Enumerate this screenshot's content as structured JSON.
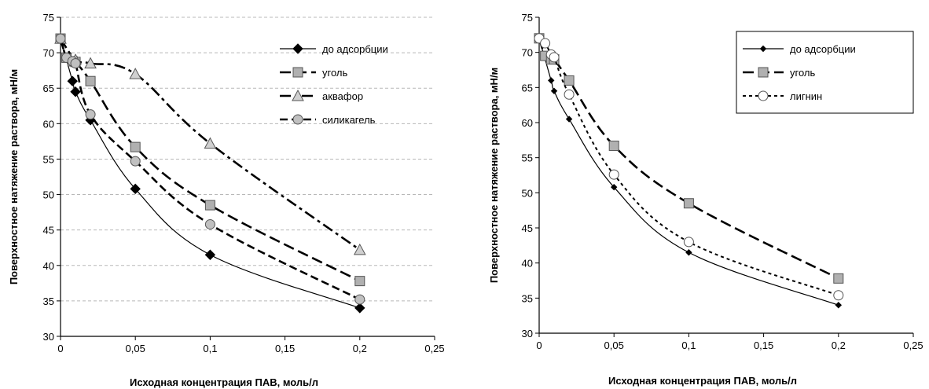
{
  "chart_data": [
    {
      "type": "line",
      "title": "",
      "xlabel": "Исходная концентрация ПАВ, моль/л",
      "ylabel": "Поверхностное натяжение раствора, мН/м",
      "xlim": [
        0,
        0.25
      ],
      "ylim": [
        30,
        75
      ],
      "x_ticks": [
        "0",
        "0,05",
        "0,1",
        "0,15",
        "0,2",
        "0,25"
      ],
      "y_ticks": [
        "30",
        "35",
        "40",
        "45",
        "50",
        "55",
        "60",
        "65",
        "70",
        "75"
      ],
      "grid": "horizontal dashed",
      "legend_position": "top-right",
      "series": [
        {
          "name": "до адсорбции",
          "marker": "diamond",
          "line": "solid-thin",
          "x": [
            0,
            0.008,
            0.01,
            0.02,
            0.05,
            0.1,
            0.2
          ],
          "y": [
            72,
            66,
            64.5,
            60.5,
            50.8,
            41.5,
            34
          ]
        },
        {
          "name": "уголь",
          "marker": "square",
          "line": "long-dash",
          "x": [
            0,
            0.004,
            0.008,
            0.01,
            0.02,
            0.05,
            0.1,
            0.2
          ],
          "y": [
            72,
            69.3,
            68.8,
            68.7,
            66,
            56.7,
            48.5,
            37.8
          ]
        },
        {
          "name": "аквафор",
          "marker": "triangle",
          "line": "dash-dot",
          "x": [
            0,
            0.01,
            0.02,
            0.05,
            0.1,
            0.2
          ],
          "y": [
            72,
            69,
            68.5,
            67,
            57.2,
            42.2
          ]
        },
        {
          "name": "силикагель",
          "marker": "circle-gray",
          "line": "dash",
          "x": [
            0,
            0.004,
            0.008,
            0.01,
            0.02,
            0.05,
            0.1,
            0.2
          ],
          "y": [
            72,
            69.3,
            68.8,
            68.5,
            61.3,
            54.7,
            45.8,
            35.2
          ]
        }
      ]
    },
    {
      "type": "line",
      "title": "",
      "xlabel": "Исходная концентрация ПАВ, моль/л",
      "ylabel": "Поверхностное натяжение раствора, мН/м",
      "xlim": [
        0,
        0.25
      ],
      "ylim": [
        30,
        75
      ],
      "x_ticks": [
        "0",
        "0,05",
        "0,1",
        "0,15",
        "0,2",
        "0,25"
      ],
      "y_ticks": [
        "30",
        "35",
        "40",
        "45",
        "50",
        "55",
        "60",
        "65",
        "70",
        "75"
      ],
      "grid": "none",
      "legend_position": "top-right",
      "series": [
        {
          "name": "до адсорбции",
          "marker": "diamond-small",
          "line": "solid-thin",
          "x": [
            0,
            0.008,
            0.01,
            0.02,
            0.05,
            0.1,
            0.2
          ],
          "y": [
            72,
            66,
            64.5,
            60.5,
            50.8,
            41.5,
            34
          ]
        },
        {
          "name": "уголь",
          "marker": "square",
          "line": "long-dash",
          "x": [
            0,
            0.004,
            0.008,
            0.01,
            0.02,
            0.05,
            0.1,
            0.2
          ],
          "y": [
            72,
            69.5,
            69,
            69,
            66,
            56.7,
            48.5,
            37.8
          ]
        },
        {
          "name": "лигнин",
          "marker": "circle-white",
          "line": "dotted",
          "x": [
            0,
            0.004,
            0.008,
            0.01,
            0.02,
            0.05,
            0.1,
            0.2
          ],
          "y": [
            72,
            71.3,
            69.7,
            69.3,
            64,
            52.6,
            43,
            35.4
          ]
        }
      ]
    }
  ]
}
